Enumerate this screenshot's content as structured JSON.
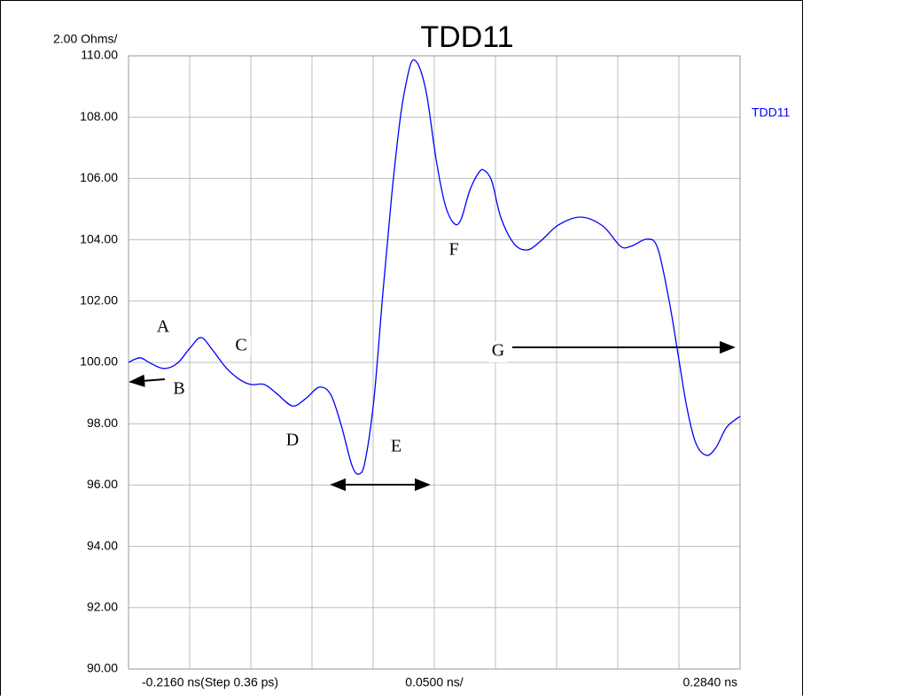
{
  "chart_data": {
    "type": "line",
    "title": "TDD11",
    "y_per_div": {
      "value": 2,
      "label": "2.00 Ohms/"
    },
    "x_per_div": {
      "value": 0.05,
      "label": "0.0500 ns/"
    },
    "xlim": [
      -0.216,
      0.284
    ],
    "xticks": [
      {
        "value": -0.216,
        "label": "-0.2160 ns(Step 0.36 ps)"
      },
      {
        "value": 0.284,
        "label": "0.2840 ns"
      }
    ],
    "ylim": [
      90,
      110
    ],
    "yticks": [
      {
        "value": 90,
        "label": "90.00"
      },
      {
        "value": 92,
        "label": "92.00"
      },
      {
        "value": 94,
        "label": "94.00"
      },
      {
        "value": 96,
        "label": "96.00"
      },
      {
        "value": 98,
        "label": "98.00"
      },
      {
        "value": 100,
        "label": "100.00"
      },
      {
        "value": 102,
        "label": "102.00"
      },
      {
        "value": 104,
        "label": "104.00"
      },
      {
        "value": 106,
        "label": "106.00"
      },
      {
        "value": 108,
        "label": "108.00"
      },
      {
        "value": 110,
        "label": "110.00"
      }
    ],
    "grid": true,
    "x": [
      -0.216,
      -0.2066,
      -0.1979,
      -0.187,
      -0.1761,
      -0.1653,
      -0.1566,
      -0.1472,
      -0.1363,
      -0.1254,
      -0.116,
      -0.1051,
      -0.095,
      -0.0819,
      -0.0711,
      -0.0602,
      -0.0508,
      -0.0421,
      -0.0334,
      -0.0276,
      -0.0225,
      -0.0153,
      -0.008,
      -0.0008,
      0.0065,
      0.0123,
      0.0166,
      0.0224,
      0.0282,
      0.0355,
      0.0427,
      0.05,
      0.0557,
      0.063,
      0.0702,
      0.0746,
      0.0811,
      0.0883,
      0.0992,
      0.1101,
      0.121,
      0.1354,
      0.1536,
      0.1717,
      0.1862,
      0.1949,
      0.2079,
      0.2166,
      0.2261,
      0.2333,
      0.2405,
      0.2478,
      0.2565,
      0.2644,
      0.2731,
      0.284
    ],
    "series": [
      {
        "name": "TDD11",
        "color": "#0000ff",
        "values": [
          100.0,
          100.15,
          99.97,
          99.8,
          99.97,
          100.49,
          100.81,
          100.4,
          99.83,
          99.45,
          99.28,
          99.28,
          98.99,
          98.58,
          98.82,
          99.19,
          98.96,
          97.95,
          96.65,
          96.36,
          96.79,
          98.82,
          102.28,
          105.46,
          108.06,
          109.36,
          109.86,
          109.57,
          108.64,
          106.62,
          105.17,
          104.54,
          104.65,
          105.61,
          106.18,
          106.27,
          105.9,
          104.74,
          103.87,
          103.67,
          103.96,
          104.48,
          104.74,
          104.45,
          103.79,
          103.79,
          104.02,
          103.73,
          101.99,
          100.26,
          98.53,
          97.37,
          96.97,
          97.23,
          97.89,
          98.24
        ]
      }
    ],
    "annotations": [
      "A",
      "B",
      "C",
      "D",
      "E",
      "F",
      "G"
    ]
  }
}
